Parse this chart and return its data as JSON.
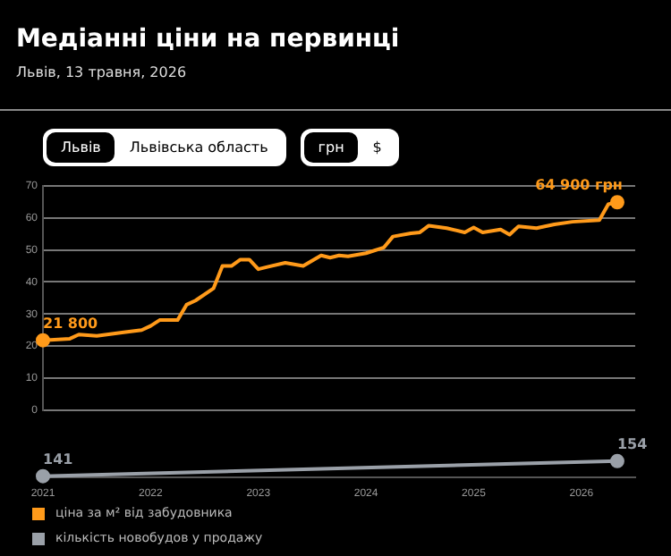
{
  "chart_data": [
    {
      "type": "line",
      "title": "Медіанні ціни на первинці",
      "subtitle": "Львів, 13 травня, 2026",
      "annotations": [
        "Львів",
        "Львівська область",
        "грн",
        "$",
        {
          "text": "21 800",
          "x": "2021-01",
          "y": 21.8
        },
        {
          "text": "64 900 грн",
          "x": "2026-05",
          "y": 64.9
        }
      ],
      "series": [
        {
          "name": "ціна за м² від забудовника",
          "color": "#ff9a1a",
          "x": [
            "2021-01",
            "2021-04",
            "2021-05",
            "2021-07",
            "2021-10",
            "2021-12",
            "2022-01",
            "2022-02",
            "2022-04",
            "2022-05",
            "2022-06",
            "2022-08",
            "2022-09",
            "2022-10",
            "2022-11",
            "2022-12",
            "2023-01",
            "2023-02",
            "2023-04",
            "2023-06",
            "2023-08",
            "2023-09",
            "2023-10",
            "2023-11",
            "2024-01",
            "2024-03",
            "2024-04",
            "2024-06",
            "2024-07",
            "2024-08",
            "2024-10",
            "2024-12",
            "2025-01",
            "2025-02",
            "2025-04",
            "2025-05",
            "2025-06",
            "2025-08",
            "2025-10",
            "2025-12",
            "2026-03",
            "2026-04",
            "2026-05"
          ],
          "values": [
            21.8,
            22.3,
            23.6,
            23.2,
            24.3,
            25,
            26.3,
            28.1,
            28.1,
            32.9,
            34.2,
            38,
            45,
            45,
            47,
            47,
            44,
            44.7,
            46,
            45,
            48.3,
            47.6,
            48.3,
            48,
            49,
            50.8,
            54.2,
            55.2,
            55.5,
            57.6,
            56.8,
            55.5,
            57,
            55.5,
            56.4,
            54.8,
            57.4,
            56.8,
            58,
            58.8,
            59.3,
            64.3,
            64.9
          ]
        }
      ],
      "xlim": [
        "2021-01",
        "2026-07"
      ],
      "ylim": [
        0,
        70
      ],
      "yticks": [
        0,
        10,
        20,
        30,
        40,
        50,
        60,
        70
      ],
      "xticks": [
        "2021",
        "2022",
        "2023",
        "2024",
        "2025",
        "2026"
      ],
      "grid": "y",
      "tick_labels": "y",
      "legend": "bottom"
    },
    {
      "type": "line",
      "series": [
        {
          "name": "кількість новобудов у продажу",
          "color": "#9aa0a8",
          "x": [
            "2021-01",
            "2026-05"
          ],
          "values": [
            141,
            154
          ],
          "value_labels": [
            "141",
            "154"
          ]
        }
      ],
      "xlim": [
        "2021-01",
        "2026-07"
      ],
      "xticks": [
        "2021",
        "2022",
        "2023",
        "2024",
        "2025",
        "2026"
      ],
      "tick_labels": "x",
      "marker": "circle",
      "legend": "bottom"
    }
  ]
}
